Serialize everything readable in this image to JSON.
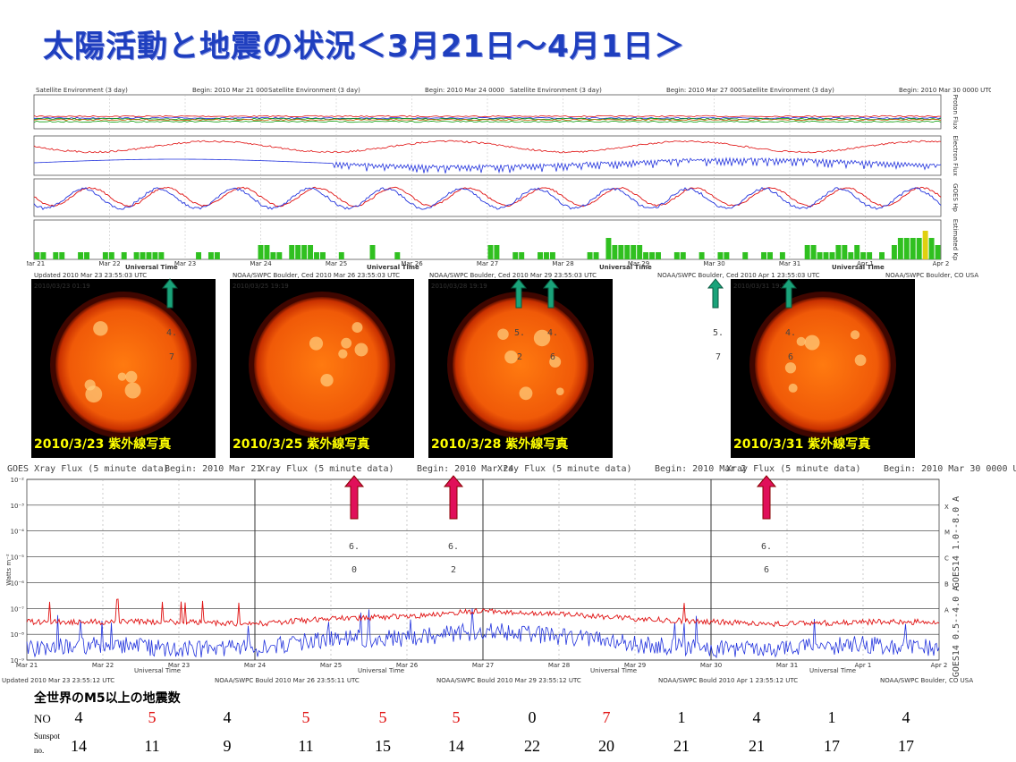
{
  "title": "太陽活動と地震の状況＜3月21日～4月1日＞",
  "colors": {
    "title": "#1f3fbf",
    "arrow_green": "#1aa37a",
    "arrow_red": "#e0105a",
    "red": "#e01010",
    "blue": "#2233dd"
  },
  "satellite_panel": {
    "headers": [
      {
        "left": "Satellite Environment (3 day)",
        "right": "Begin:  2010 Mar 21 000"
      },
      {
        "left": "Satellite Environment (3 day)",
        "right": "Begin:  2010 Mar 24 0000"
      },
      {
        "left": "Satellite Environment (3 day)",
        "right": "Begin:  2010 Mar 27 000"
      },
      {
        "left": "Satellite Environment (3 day)",
        "right": "Begin:  2010 Mar 30 0000 UTC"
      }
    ],
    "row_labels": [
      "Proton Flux",
      "Electron Flux",
      "GOES Hp",
      "Estimated Kp"
    ],
    "date_labels": [
      "Mar 21",
      "Mar 22",
      "Mar 23",
      "Mar 24",
      "Mar 25",
      "Mar 26",
      "Mar 27",
      "Mar 28",
      "Mar 29",
      "Mar 30",
      "Mar 31",
      "Apr 1",
      "Apr 2"
    ],
    "axis_label": "Universal Time",
    "footers": [
      "Updated 2010 Mar 23 23:55:03 UTC",
      "NOAA/SWPC Boulder, Ced 2010 Mar 26 23:55:03 UTC",
      "NOAA/SWPC Boulder, Ced 2010 Mar 29 23:55:03 UTC",
      "NOAA/SWPC Boulder, Ced 2010 Apr  1 23:55:03 UTC",
      "NOAA/SWPC Boulder, CO USA"
    ]
  },
  "sun_images": [
    {
      "label": "2010/3/23 紫外線写真",
      "stamp": "2010/03/23 01:19",
      "numbers": [
        {
          "digits": [
            "4",
            "7"
          ],
          "color": "blue"
        }
      ]
    },
    {
      "label": "2010/3/25 紫外線写真",
      "stamp": "2010/03/25 19:19",
      "numbers": []
    },
    {
      "label": "2010/3/28 紫外線写真",
      "stamp": "2010/03/28 19:19",
      "numbers": [
        {
          "digits": [
            "5",
            "2"
          ],
          "color": "red"
        },
        {
          "digits": [
            "4",
            "6"
          ],
          "color": "blue"
        }
      ]
    },
    {
      "label": "2010/3/31 紫外線写真",
      "stamp": "2010/03/31 19:19",
      "numbers": [
        {
          "digits": [
            "4",
            "6"
          ],
          "color": "blue"
        }
      ]
    }
  ],
  "outside_number": {
    "digits": [
      "5",
      "7"
    ],
    "color": "red"
  },
  "xray_panel": {
    "headers": [
      {
        "left": "GOES Xray Flux (5 minute data)",
        "right": "Begin:  2010 Mar 21"
      },
      {
        "left": "Xray Flux (5 minute data)",
        "right": "Begin:  2010 Mar 24"
      },
      {
        "left": "Xray Flux (5 minute data)",
        "right": "Begin:  2010 Mar 2"
      },
      {
        "left": "Xray Flux (5 minute data)",
        "right": "Begin:  2010 Mar 30 0000 UTC"
      }
    ],
    "ylabel": "Watts m⁻²",
    "y_ticks": [
      "10⁻²",
      "10⁻³",
      "10⁻⁴",
      "10⁻⁵",
      "10⁻⁶",
      "10⁻⁷",
      "10⁻⁸",
      "10⁻⁹"
    ],
    "class_labels": [
      "X",
      "M",
      "C",
      "B",
      "A"
    ],
    "right_labels": [
      "GOES14 1.0--8.0 A",
      "GOES14 0.5--4.0 A"
    ],
    "date_labels": [
      "Mar 21",
      "Mar 22",
      "Mar 23",
      "Mar 24",
      "Mar 25",
      "Mar 26",
      "Mar 27",
      "Mar 28",
      "Mar 29",
      "Mar 30",
      "Mar 31",
      "Apr 1",
      "Apr 2"
    ],
    "axis_label": "Universal Time",
    "footers": [
      "Updated 2010 Mar 23 23:55:12 UTC",
      "NOAA/SWPC Bould 2010 Mar 26 23:55:11 UTC",
      "NOAA/SWPC Bould 2010 Mar 29 23:55:12 UTC",
      "NOAA/SWPC Bould 2010 Apr  1 23:55:12 UTC",
      "NOAA/SWPC Boulder, CO USA"
    ],
    "numbers": [
      {
        "digits": [
          "6",
          "0"
        ]
      },
      {
        "digits": [
          "6",
          "2"
        ]
      },
      {
        "digits": [
          "6",
          "6"
        ]
      }
    ]
  },
  "chart_data": [
    {
      "type": "line",
      "title": "",
      "x": [
        "Mar 21",
        "Mar 22",
        "Mar 23",
        "Mar 24",
        "Mar 25",
        "Mar 26",
        "Mar 27",
        "Mar 28",
        "Mar 29",
        "Mar 30",
        "Mar 31",
        "Apr 1",
        "Apr 2"
      ],
      "ylabel": "Watts m⁻²",
      "xlabel": "Universal Time",
      "yscale": "log",
      "ylim": [
        1e-09,
        0.01
      ],
      "series": [
        {
          "name": "GOES14 1.0--8.0 A",
          "color": "#e01010",
          "values": [
            3e-08,
            3e-08,
            3e-08,
            2.5e-08,
            4e-08,
            5e-08,
            8e-08,
            6e-08,
            4e-08,
            3e-08,
            2.5e-08,
            3e-08,
            3e-08
          ]
        },
        {
          "name": "GOES14 0.5--4.0 A",
          "color": "#2233dd",
          "values": [
            2e-09,
            3e-09,
            2e-09,
            2e-09,
            5e-09,
            5e-09,
            1e-08,
            6e-09,
            3e-09,
            2e-09,
            2e-09,
            3e-09,
            2e-09
          ]
        }
      ]
    },
    {
      "type": "bar",
      "title": "",
      "ylabel": "Estimated Kp",
      "note": "3-hourly Kp, mostly quiet (green)",
      "x_start": "Mar 21",
      "x_end": "Apr 2",
      "values": [
        1,
        1,
        0,
        1,
        1,
        0,
        0,
        1,
        1,
        0,
        0,
        1,
        1,
        0,
        1,
        0,
        1,
        1,
        1,
        1,
        1,
        0,
        0,
        0,
        0,
        0,
        1,
        0,
        1,
        1,
        0,
        0,
        0,
        0,
        0,
        0,
        2,
        2,
        1,
        1,
        0,
        2,
        2,
        2,
        2,
        1,
        1,
        0,
        0,
        1,
        0,
        0,
        0,
        0,
        2,
        0,
        0,
        0,
        1,
        0,
        0,
        0,
        0,
        0,
        0,
        0,
        0,
        0,
        0,
        0,
        0,
        0,
        0,
        2,
        2,
        0,
        0,
        1,
        1,
        0,
        0,
        1,
        1,
        1,
        0,
        0,
        0,
        0,
        0,
        1,
        1,
        0,
        3,
        2,
        2,
        2,
        2,
        2,
        1,
        1,
        1,
        0,
        0,
        1,
        1,
        0,
        0,
        1,
        0,
        0,
        1,
        1,
        0,
        0,
        1,
        0,
        0,
        1,
        1,
        0,
        1,
        0,
        0,
        0,
        2,
        2,
        1,
        1,
        1,
        2,
        2,
        1,
        2,
        1,
        1,
        0,
        1,
        0,
        2,
        3,
        3,
        3,
        3,
        4,
        3,
        2
      ]
    },
    {
      "type": "table",
      "title": "全世界のM5以上の地震数",
      "rows": [
        {
          "label": "NO",
          "values": [
            "4",
            "5",
            "4",
            "5",
            "5",
            "5",
            "0",
            "7",
            "1",
            "4",
            "1",
            "4"
          ],
          "red": [
            false,
            true,
            false,
            true,
            true,
            true,
            false,
            true,
            false,
            false,
            false,
            false
          ]
        },
        {
          "label": "Sunspot no.",
          "values": [
            "14",
            "11",
            "9",
            "11",
            "15",
            "14",
            "22",
            "20",
            "21",
            "21",
            "17",
            "17"
          ]
        }
      ]
    }
  ],
  "quake_table": {
    "title": "全世界のM5以上の地震数",
    "no_label": "NO",
    "sunspot_label_top": "Sunspot",
    "sunspot_label_bottom": "no.",
    "no_values": [
      "4",
      "5",
      "4",
      "5",
      "5",
      "5",
      "0",
      "7",
      "1",
      "4",
      "1",
      "4"
    ],
    "no_red": [
      false,
      true,
      false,
      true,
      true,
      true,
      false,
      true,
      false,
      false,
      false,
      false
    ],
    "sunspot_values": [
      "14",
      "11",
      "9",
      "11",
      "15",
      "14",
      "22",
      "20",
      "21",
      "21",
      "17",
      "17"
    ]
  }
}
